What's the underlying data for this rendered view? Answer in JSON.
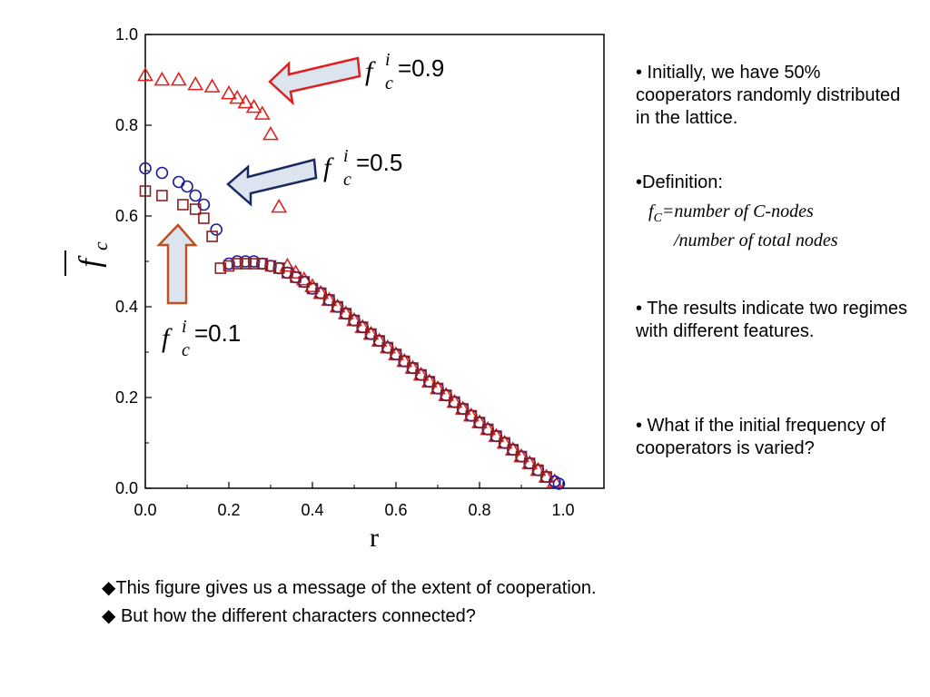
{
  "chart_data": {
    "type": "scatter",
    "xlabel": "r",
    "ylabel": "f",
    "xlim": [
      0,
      1.0
    ],
    "ylim": [
      0,
      1.0
    ],
    "x_ticks": [
      "0.0",
      "0.2",
      "0.4",
      "0.6",
      "0.8",
      "1.0"
    ],
    "y_ticks": [
      "0.0",
      "0.2",
      "0.4",
      "0.6",
      "0.8",
      "1.0"
    ],
    "grid": false,
    "series": [
      {
        "name": "f_c^i=0.9",
        "marker": "triangle",
        "color": "#e02020",
        "x": [
          0.0,
          0.04,
          0.08,
          0.12,
          0.16,
          0.2,
          0.22,
          0.24,
          0.26,
          0.28,
          0.3,
          0.32,
          0.34,
          0.36,
          0.38,
          0.4,
          0.42,
          0.44,
          0.46,
          0.48,
          0.5,
          0.52,
          0.54,
          0.56,
          0.58,
          0.6,
          0.62,
          0.64,
          0.66,
          0.68,
          0.7,
          0.72,
          0.74,
          0.76,
          0.78,
          0.8,
          0.82,
          0.84,
          0.86,
          0.88,
          0.9,
          0.92,
          0.94,
          0.96,
          0.98
        ],
        "y": [
          0.91,
          0.9,
          0.9,
          0.89,
          0.885,
          0.87,
          0.86,
          0.85,
          0.84,
          0.825,
          0.78,
          0.62,
          0.49,
          0.475,
          0.46,
          0.445,
          0.43,
          0.415,
          0.4,
          0.385,
          0.37,
          0.355,
          0.34,
          0.325,
          0.31,
          0.295,
          0.28,
          0.265,
          0.25,
          0.235,
          0.22,
          0.205,
          0.19,
          0.175,
          0.16,
          0.145,
          0.13,
          0.115,
          0.1,
          0.085,
          0.07,
          0.055,
          0.04,
          0.025,
          0.015
        ]
      },
      {
        "name": "f_c^i=0.5",
        "marker": "circle",
        "color": "#1a1aa0",
        "x": [
          0.0,
          0.04,
          0.08,
          0.1,
          0.12,
          0.14,
          0.17,
          0.2,
          0.22,
          0.24,
          0.26,
          0.28,
          0.3,
          0.32,
          0.34,
          0.36,
          0.38,
          0.4,
          0.42,
          0.44,
          0.46,
          0.48,
          0.5,
          0.52,
          0.54,
          0.56,
          0.58,
          0.6,
          0.62,
          0.64,
          0.66,
          0.68,
          0.7,
          0.72,
          0.74,
          0.76,
          0.78,
          0.8,
          0.82,
          0.84,
          0.86,
          0.88,
          0.9,
          0.92,
          0.94,
          0.96,
          0.98,
          0.99
        ],
        "y": [
          0.705,
          0.695,
          0.675,
          0.665,
          0.645,
          0.625,
          0.57,
          0.495,
          0.5,
          0.5,
          0.5,
          0.495,
          0.49,
          0.485,
          0.475,
          0.465,
          0.455,
          0.44,
          0.43,
          0.415,
          0.4,
          0.385,
          0.37,
          0.355,
          0.34,
          0.325,
          0.31,
          0.295,
          0.28,
          0.265,
          0.25,
          0.235,
          0.22,
          0.205,
          0.19,
          0.175,
          0.16,
          0.145,
          0.13,
          0.115,
          0.1,
          0.085,
          0.07,
          0.055,
          0.04,
          0.025,
          0.015,
          0.01
        ]
      },
      {
        "name": "f_c^i=0.1",
        "marker": "square",
        "color": "#8b2020",
        "x": [
          0.0,
          0.04,
          0.09,
          0.12,
          0.14,
          0.16,
          0.18,
          0.2,
          0.22,
          0.24,
          0.26,
          0.28,
          0.3,
          0.32,
          0.34,
          0.36,
          0.38,
          0.4,
          0.42,
          0.44,
          0.46,
          0.48,
          0.5,
          0.52,
          0.54,
          0.56,
          0.58,
          0.6,
          0.62,
          0.64,
          0.66,
          0.68,
          0.7,
          0.72,
          0.74,
          0.76,
          0.78,
          0.8,
          0.82,
          0.84,
          0.86,
          0.88,
          0.9,
          0.92,
          0.94,
          0.96
        ],
        "y": [
          0.655,
          0.645,
          0.625,
          0.615,
          0.595,
          0.555,
          0.485,
          0.49,
          0.495,
          0.495,
          0.495,
          0.495,
          0.49,
          0.485,
          0.475,
          0.465,
          0.455,
          0.44,
          0.43,
          0.415,
          0.4,
          0.385,
          0.37,
          0.355,
          0.34,
          0.325,
          0.31,
          0.295,
          0.28,
          0.265,
          0.25,
          0.235,
          0.22,
          0.205,
          0.19,
          0.175,
          0.16,
          0.145,
          0.13,
          0.115,
          0.1,
          0.085,
          0.07,
          0.055,
          0.04,
          0.025
        ]
      }
    ],
    "annotations": [
      {
        "base": "f",
        "sup": "i",
        "sub": "c",
        "value": "=0.9",
        "arrow_color": "#e02020",
        "arrow_direction": "left"
      },
      {
        "base": "f",
        "sup": "i",
        "sub": "c",
        "value": "=0.5",
        "arrow_color": "#1a2a60",
        "arrow_direction": "left"
      },
      {
        "base": "f",
        "sup": "i",
        "sub": "c",
        "value": "=0.1",
        "arrow_color": "#c05020",
        "arrow_direction": "up"
      }
    ]
  },
  "bullets": [
    "• Initially, we have 50% cooperators randomly distributed in the lattice.",
    "• The results indicate two regimes with different features.",
    "• What if the initial frequency of cooperators is varied?"
  ],
  "definition": {
    "label": "•Definition:",
    "f": "f",
    "sub": "C",
    "line1": "=number of C-nodes",
    "line2": "/number of total nodes"
  },
  "bottom_lines": [
    "◆This figure gives us a message of the extent of cooperation.",
    "◆ But how the different characters connected?"
  ]
}
